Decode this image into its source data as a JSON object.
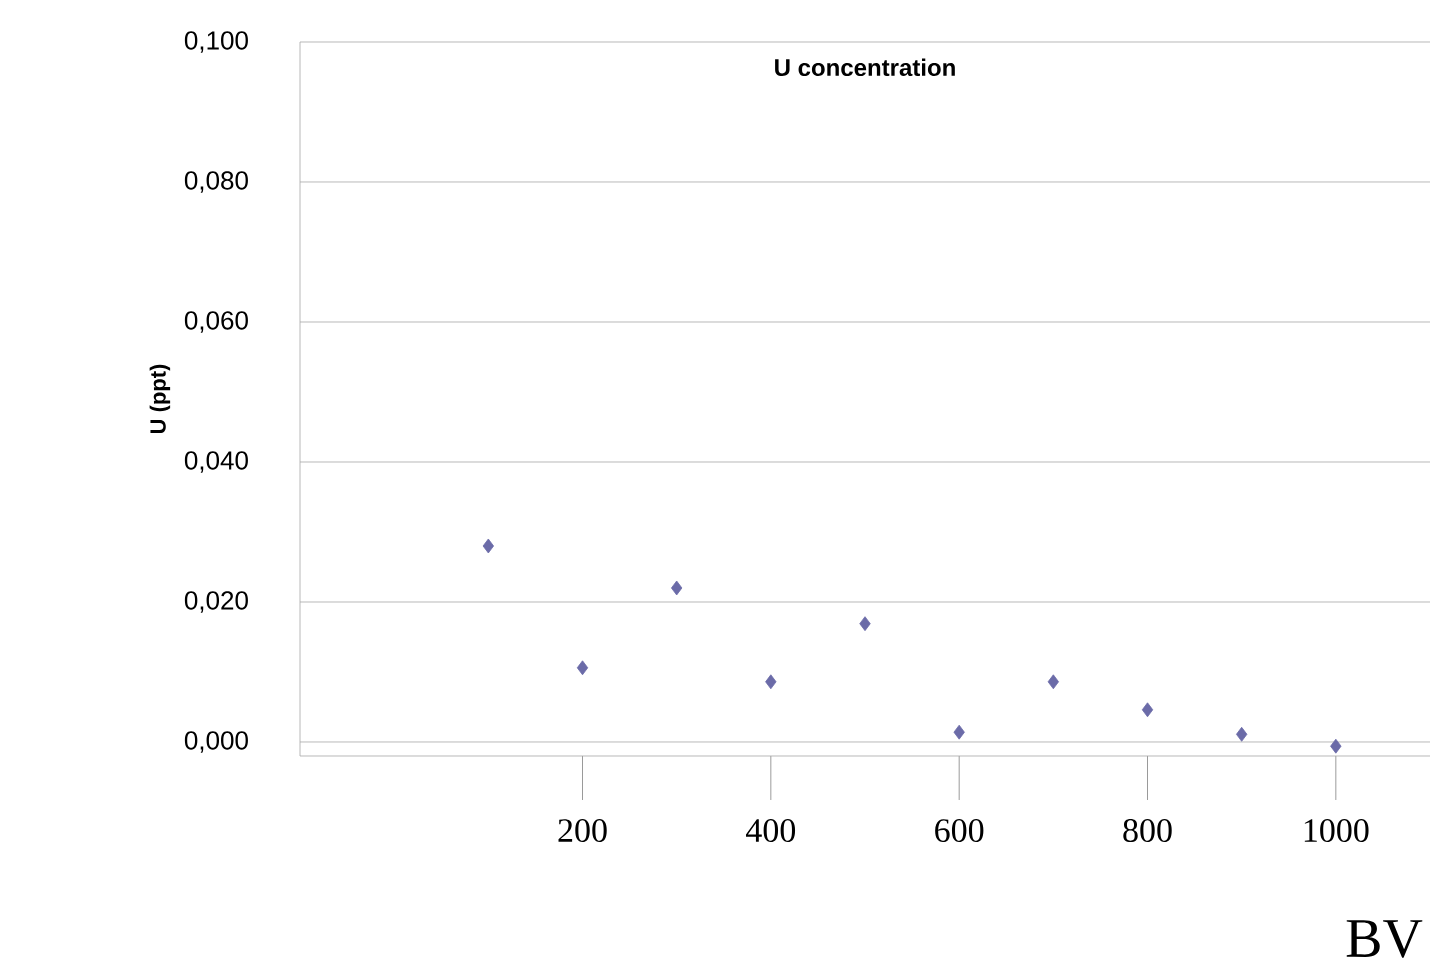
{
  "chart_data": {
    "type": "scatter",
    "title": "U concentration",
    "xlabel": "BV",
    "ylabel": "U (ppt)",
    "x": [
      100,
      200,
      300,
      400,
      500,
      600,
      700,
      800,
      900,
      1000
    ],
    "values": [
      0.028,
      0.0106,
      0.022,
      0.0086,
      0.0169,
      0.0014,
      0.0086,
      0.0046,
      0.0011,
      -0.0006
    ],
    "color": "#6b6ba8",
    "marker": "diamond",
    "grid": "y",
    "xlim": [
      -100,
      1100
    ],
    "xticks": [
      200,
      400,
      600,
      800,
      1000
    ],
    "ylim": [
      -0.002,
      0.1
    ],
    "yticks": [
      {
        "value": 0,
        "label": "0,000"
      },
      {
        "value": 0.02,
        "label": "0,020"
      },
      {
        "value": 0.04,
        "label": "0,040"
      },
      {
        "value": 0.06,
        "label": "0,060"
      },
      {
        "value": 0.08,
        "label": "0,080"
      },
      {
        "value": 0.1,
        "label": "0,100"
      }
    ]
  }
}
